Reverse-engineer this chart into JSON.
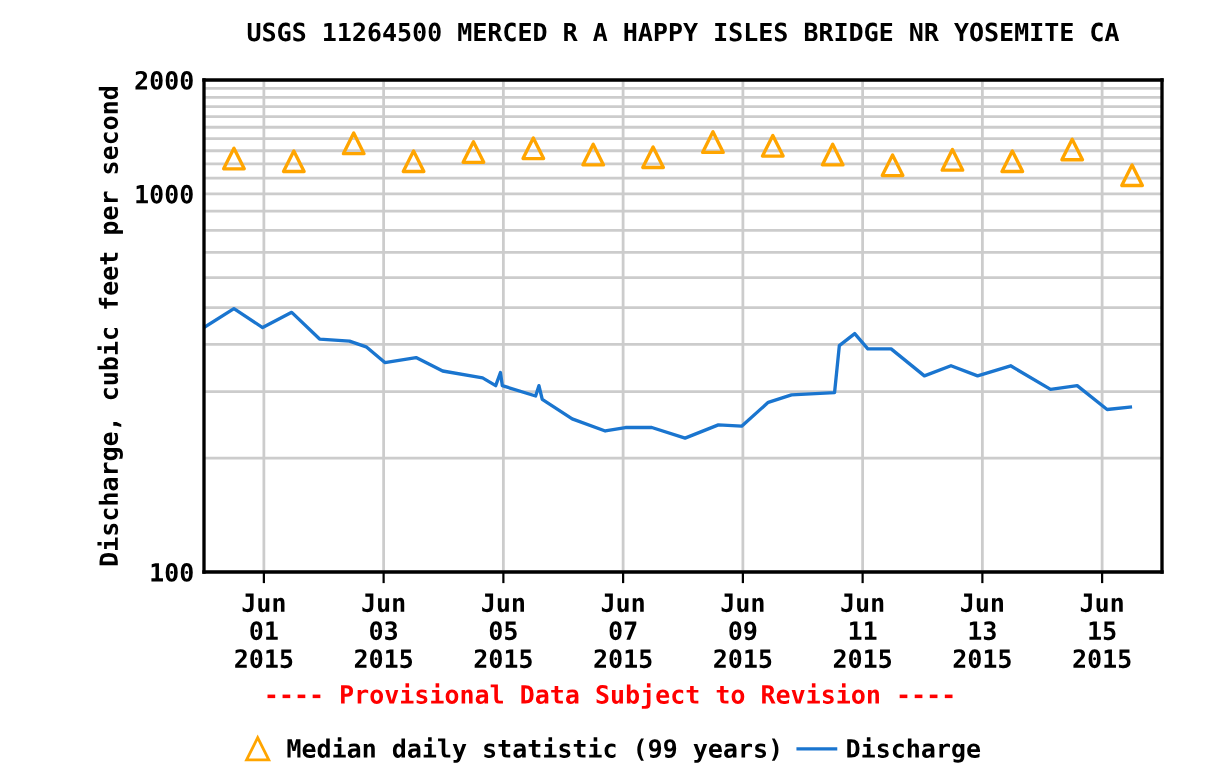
{
  "chart_data": {
    "type": "line",
    "title": "USGS 11264500 MERCED R A HAPPY ISLES BRIDGE NR YOSEMITE CA",
    "ylabel": "Discharge, cubic feet per second",
    "annotations": [
      "---- Provisional Data Subject to Revision ----"
    ],
    "log": "y",
    "grid": true,
    "legend": "bottom",
    "xlim": [
      "2015-05-31",
      "2015-06-16"
    ],
    "xticks": [
      {
        "value": "2015-06-01",
        "label": "Jun\n01\n2015"
      },
      {
        "value": "2015-06-03",
        "label": "Jun\n03\n2015"
      },
      {
        "value": "2015-06-05",
        "label": "Jun\n05\n2015"
      },
      {
        "value": "2015-06-07",
        "label": "Jun\n07\n2015"
      },
      {
        "value": "2015-06-09",
        "label": "Jun\n09\n2015"
      },
      {
        "value": "2015-06-11",
        "label": "Jun\n11\n2015"
      },
      {
        "value": "2015-06-13",
        "label": "Jun\n13\n2015"
      },
      {
        "value": "2015-06-15",
        "label": "Jun\n15\n2015"
      }
    ],
    "ylim": [
      100,
      2000
    ],
    "yticks": [
      100,
      {
        "value": 200,
        "label": null
      },
      {
        "value": 300,
        "label": null
      },
      {
        "value": 400,
        "label": null
      },
      {
        "value": 500,
        "label": null
      },
      {
        "value": 600,
        "label": null
      },
      {
        "value": 700,
        "label": null
      },
      {
        "value": 800,
        "label": null
      },
      {
        "value": 900,
        "label": null
      },
      1000,
      {
        "value": 1100,
        "label": null
      },
      {
        "value": 1200,
        "label": null
      },
      {
        "value": 1300,
        "label": null
      },
      {
        "value": 1400,
        "label": null
      },
      {
        "value": 1500,
        "label": null
      },
      {
        "value": 1600,
        "label": null
      },
      {
        "value": 1700,
        "label": null
      },
      {
        "value": 1800,
        "label": null
      },
      {
        "value": 1900,
        "label": null
      },
      2000
    ],
    "series": [
      {
        "name": "Median daily statistic (99 years)",
        "type": "scatter",
        "marker": "triangle",
        "color": "#ffa500",
        "x": [
          "2015-05-31T12:00",
          "2015-06-01T12:00",
          "2015-06-02T12:00",
          "2015-06-03T12:00",
          "2015-06-04T12:00",
          "2015-06-05T12:00",
          "2015-06-06T12:00",
          "2015-06-07T12:00",
          "2015-06-08T12:00",
          "2015-06-09T12:00",
          "2015-06-10T12:00",
          "2015-06-11T12:00",
          "2015-06-12T12:00",
          "2015-06-13T12:00",
          "2015-06-14T12:00",
          "2015-06-15T12:00"
        ],
        "values": [
          1240,
          1220,
          1360,
          1220,
          1290,
          1320,
          1270,
          1250,
          1370,
          1340,
          1270,
          1190,
          1230,
          1220,
          1310,
          1120
        ]
      },
      {
        "name": "Discharge",
        "marker": "none",
        "color": "#1a75cf",
        "x": [
          "2015-05-31T00:00",
          "2015-05-31T12:00",
          "2015-05-31T23:30",
          "2015-06-01T11:10",
          "2015-06-01T22:20",
          "2015-06-02T10:20",
          "2015-06-02T17:00",
          "2015-06-03T00:30",
          "2015-06-03T13:00",
          "2015-06-03T23:40",
          "2015-06-04T15:40",
          "2015-06-04T20:55",
          "2015-06-04T22:50",
          "2015-06-04T23:35",
          "2015-06-05T12:55",
          "2015-06-05T14:15",
          "2015-06-05T15:35",
          "2015-06-06T03:35",
          "2015-06-06T16:50",
          "2015-06-07T00:55",
          "2015-06-07T11:30",
          "2015-06-08T00:50",
          "2015-06-08T14:10",
          "2015-06-08T23:30",
          "2015-06-09T10:10",
          "2015-06-09T19:30",
          "2015-06-10T12:45",
          "2015-06-10T14:40",
          "2015-06-10T20:50",
          "2015-06-11T02:05",
          "2015-06-11T11:25",
          "2015-06-12T00:45",
          "2015-06-12T11:25",
          "2015-06-12T22:05",
          "2015-06-13T11:20",
          "2015-06-14T03:20",
          "2015-06-14T14:00",
          "2015-06-15T02:00",
          "2015-06-15T11:20"
        ],
        "values": [
          443,
          497,
          443,
          486,
          413,
          408,
          394,
          358,
          369,
          340,
          326,
          311,
          337,
          311,
          292,
          311,
          286,
          254,
          236,
          241,
          241,
          226,
          245,
          243,
          281,
          294,
          298,
          397,
          427,
          389,
          389,
          330,
          351,
          330,
          351,
          304,
          311,
          269,
          273
        ]
      }
    ]
  }
}
